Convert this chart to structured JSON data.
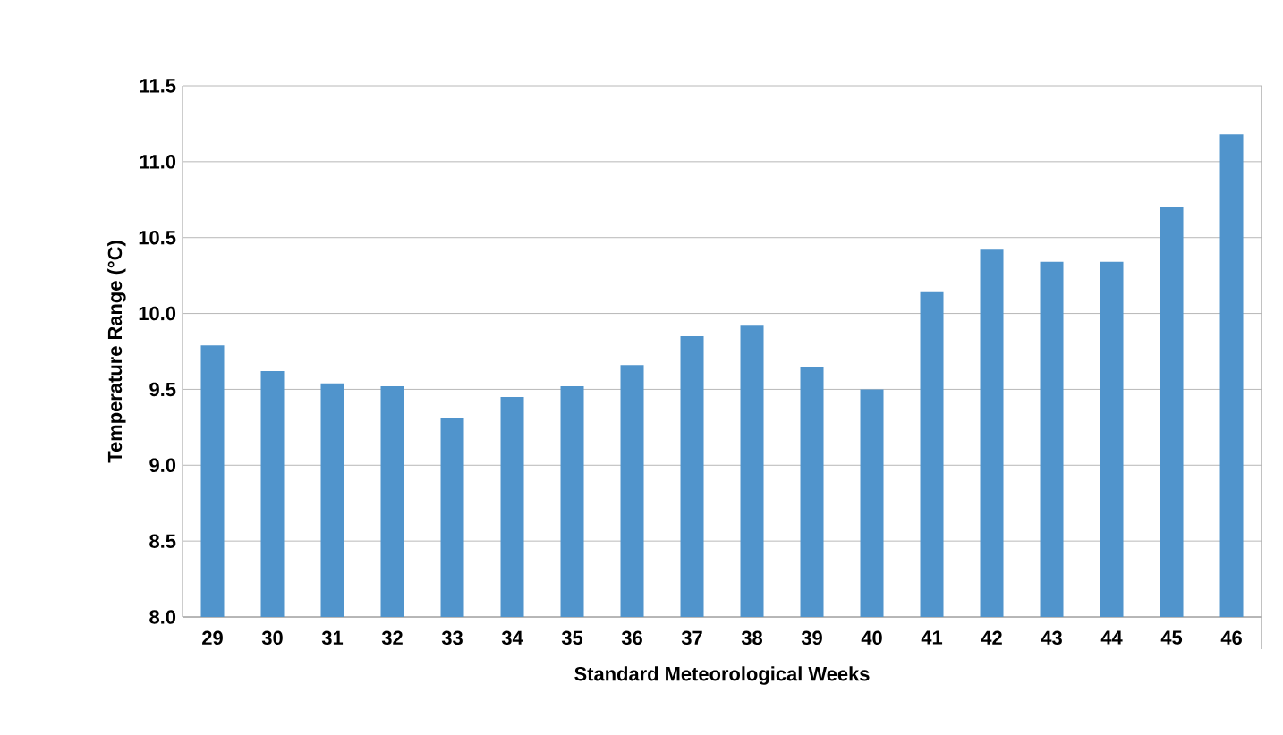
{
  "chart_data": {
    "type": "bar",
    "xlabel": "Standard Meteorological Weeks",
    "ylabel": "Temperature Range (°C)",
    "categories": [
      "29",
      "30",
      "31",
      "32",
      "33",
      "34",
      "35",
      "36",
      "37",
      "38",
      "39",
      "40",
      "41",
      "42",
      "43",
      "44",
      "45",
      "46"
    ],
    "values": [
      9.79,
      9.62,
      9.54,
      9.52,
      9.31,
      9.45,
      9.52,
      9.66,
      9.85,
      9.92,
      9.65,
      9.5,
      10.14,
      10.42,
      10.34,
      10.34,
      10.7,
      11.18
    ],
    "color": "#5094cc",
    "ylim": [
      8.0,
      11.5
    ],
    "yticks": [
      {
        "value": 8.0,
        "label": "8.0"
      },
      {
        "value": 8.5,
        "label": "8.5"
      },
      {
        "value": 9.0,
        "label": "9.0"
      },
      {
        "value": 9.5,
        "label": "9.5"
      },
      {
        "value": 10.0,
        "label": "10.0"
      },
      {
        "value": 10.5,
        "label": "10.5"
      },
      {
        "value": 11.0,
        "label": "11.0"
      },
      {
        "value": 11.5,
        "label": "11.5"
      }
    ],
    "grid": "y"
  }
}
